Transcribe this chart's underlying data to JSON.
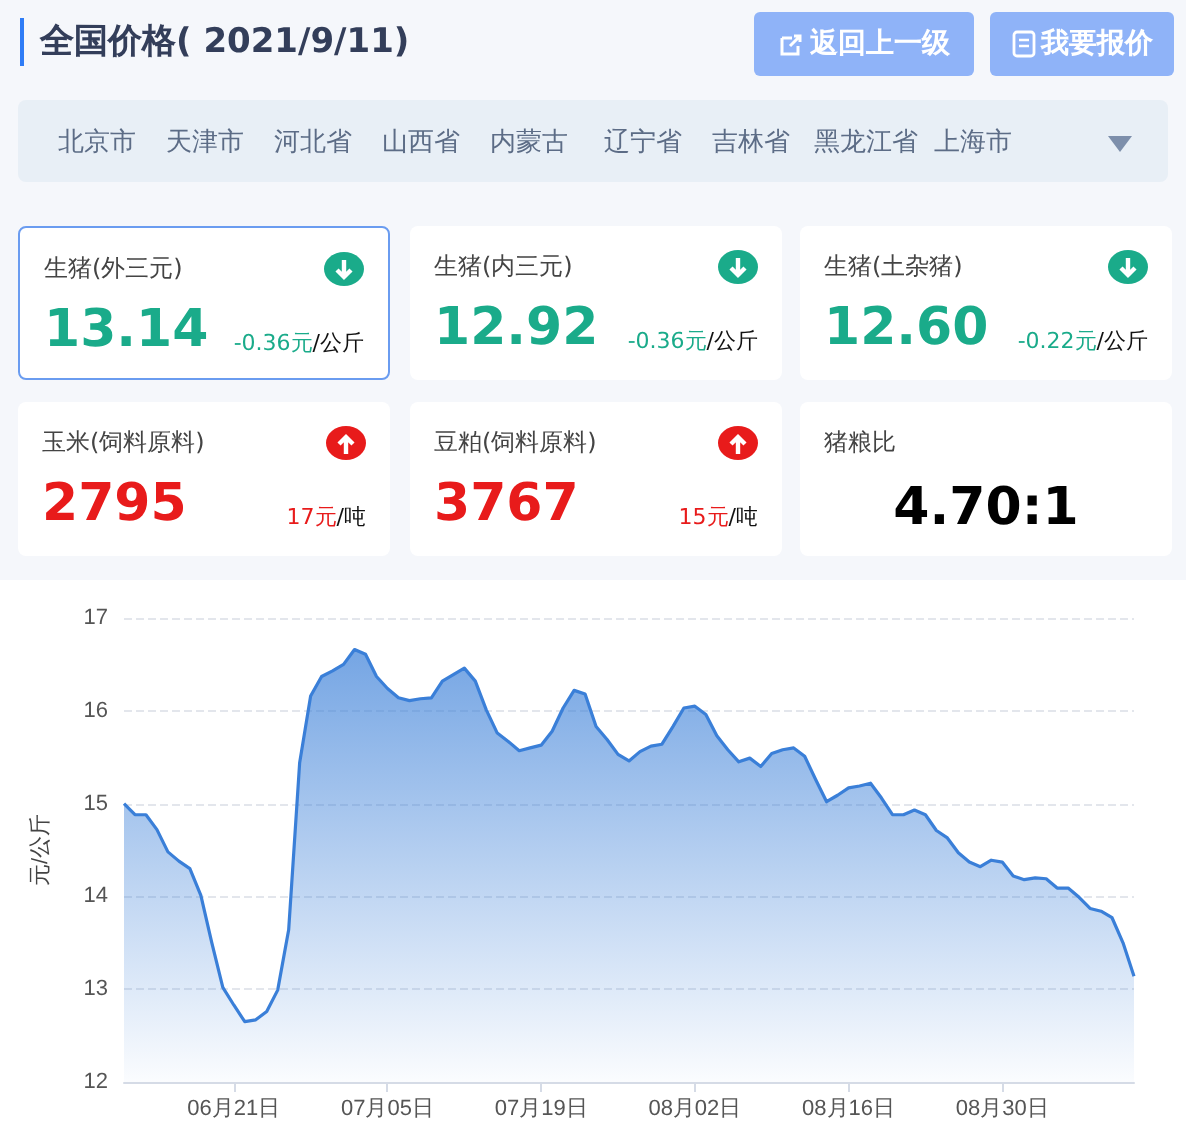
{
  "chart_data": [
    {
      "type": "other",
      "title": "全国价格( 2021/9/11)",
      "annotations": [
        "返回上一级",
        "我要报价",
        "北京市",
        "天津市",
        "河北省",
        "山西省",
        "内蒙古",
        "辽宁省",
        "吉林省",
        "黑龙江省",
        "上海市",
        "生猪(外三元)",
        "13.14",
        "-0.36元",
        "/公斤",
        "生猪(内三元)",
        "12.92",
        "-0.36元",
        "/公斤",
        "生猪(土杂猪)",
        "12.60",
        "-0.22元",
        "/公斤",
        "玉米(饲料原料)",
        "2795",
        "17元",
        "/吨",
        "豆粕(饲料原料)",
        "3767",
        "15元",
        "/吨",
        "猪粮比",
        "4.70:1"
      ]
    },
    {
      "type": "area",
      "ylabel": "元/公斤",
      "color": "#3a7fd8",
      "marker": "none",
      "grid": "y",
      "xlim": [
        "2021-06-11",
        "2021-09-11"
      ],
      "ylim": [
        12,
        17
      ],
      "yticks": [
        12,
        13,
        14,
        15,
        16,
        17
      ],
      "xticks": [
        {
          "value": "2021-06-21",
          "label": "06月21日"
        },
        {
          "value": "2021-07-05",
          "label": "07月05日"
        },
        {
          "value": "2021-07-19",
          "label": "07月19日"
        },
        {
          "value": "2021-08-02",
          "label": "08月02日"
        },
        {
          "value": "2021-08-16",
          "label": "08月16日"
        },
        {
          "value": "2021-08-30",
          "label": "08月30日"
        }
      ],
      "x": [
        "2021-06-11",
        "2021-06-12",
        "2021-06-13",
        "2021-06-14",
        "2021-06-15",
        "2021-06-16",
        "2021-06-17",
        "2021-06-18",
        "2021-06-19",
        "2021-06-20",
        "2021-06-21",
        "2021-06-22",
        "2021-06-23",
        "2021-06-24",
        "2021-06-25",
        "2021-06-26",
        "2021-06-27",
        "2021-06-28",
        "2021-06-29",
        "2021-06-30",
        "2021-07-01",
        "2021-07-02",
        "2021-07-03",
        "2021-07-04",
        "2021-07-05",
        "2021-07-06",
        "2021-07-07",
        "2021-07-08",
        "2021-07-09",
        "2021-07-10",
        "2021-07-11",
        "2021-07-12",
        "2021-07-13",
        "2021-07-14",
        "2021-07-15",
        "2021-07-16",
        "2021-07-17",
        "2021-07-18",
        "2021-07-19",
        "2021-07-20",
        "2021-07-21",
        "2021-07-22",
        "2021-07-23",
        "2021-07-24",
        "2021-07-25",
        "2021-07-26",
        "2021-07-27",
        "2021-07-28",
        "2021-07-29",
        "2021-07-30",
        "2021-07-31",
        "2021-08-01",
        "2021-08-02",
        "2021-08-03",
        "2021-08-04",
        "2021-08-05",
        "2021-08-06",
        "2021-08-07",
        "2021-08-08",
        "2021-08-09",
        "2021-08-10",
        "2021-08-11",
        "2021-08-12",
        "2021-08-13",
        "2021-08-14",
        "2021-08-15",
        "2021-08-16",
        "2021-08-17",
        "2021-08-18",
        "2021-08-19",
        "2021-08-20",
        "2021-08-21",
        "2021-08-22",
        "2021-08-23",
        "2021-08-24",
        "2021-08-25",
        "2021-08-26",
        "2021-08-27",
        "2021-08-28",
        "2021-08-29",
        "2021-08-30",
        "2021-08-31",
        "2021-09-01",
        "2021-09-02",
        "2021-09-03",
        "2021-09-04",
        "2021-09-05",
        "2021-09-06",
        "2021-09-07",
        "2021-09-08",
        "2021-09-09",
        "2021-09-10",
        "2021-09-11"
      ],
      "values": [
        15.0,
        14.88,
        14.88,
        14.72,
        14.48,
        14.38,
        14.3,
        14.01,
        13.5,
        13.02,
        12.83,
        12.65,
        12.67,
        12.76,
        12.99,
        13.64,
        15.44,
        16.16,
        16.37,
        16.43,
        16.5,
        16.66,
        16.61,
        16.37,
        16.24,
        16.14,
        16.11,
        16.13,
        16.14,
        16.32,
        16.39,
        16.46,
        16.32,
        16.01,
        15.76,
        15.67,
        15.57,
        15.6,
        15.63,
        15.78,
        16.03,
        16.22,
        16.18,
        15.83,
        15.69,
        15.53,
        15.46,
        15.56,
        15.62,
        15.64,
        15.83,
        16.03,
        16.05,
        15.96,
        15.73,
        15.58,
        15.45,
        15.49,
        15.4,
        15.54,
        15.58,
        15.6,
        15.51,
        15.26,
        15.02,
        15.09,
        15.17,
        15.19,
        15.22,
        15.06,
        14.88,
        14.88,
        14.93,
        14.88,
        14.71,
        14.63,
        14.47,
        14.37,
        14.32,
        14.39,
        14.37,
        14.22,
        14.18,
        14.2,
        14.19,
        14.09,
        14.09,
        13.99,
        13.87,
        13.84,
        13.77,
        13.5,
        13.14
      ]
    }
  ]
}
